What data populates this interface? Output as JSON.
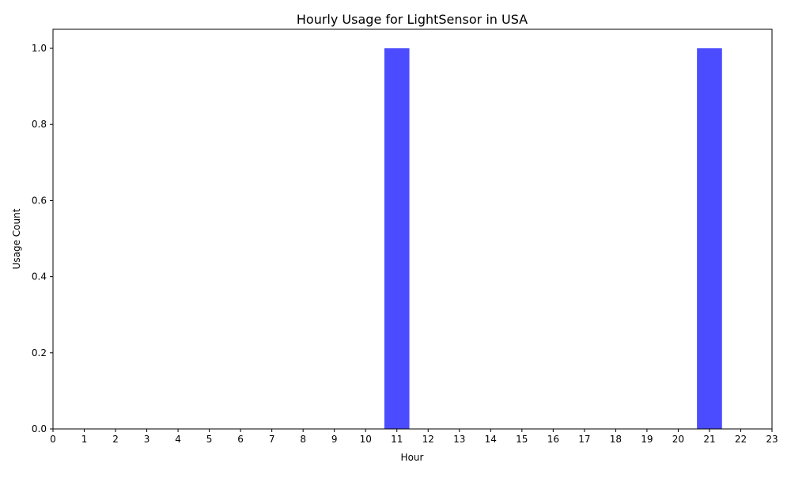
{
  "chart_data": {
    "type": "bar",
    "title": "Hourly Usage for LightSensor in USA",
    "xlabel": "Hour",
    "ylabel": "Usage Count",
    "categories": [
      "0",
      "1",
      "2",
      "3",
      "4",
      "5",
      "6",
      "7",
      "8",
      "9",
      "10",
      "11",
      "12",
      "13",
      "14",
      "15",
      "16",
      "17",
      "18",
      "19",
      "20",
      "21",
      "22",
      "23"
    ],
    "values": [
      0,
      0,
      0,
      0,
      0,
      0,
      0,
      0,
      0,
      0,
      0,
      1,
      0,
      0,
      0,
      0,
      0,
      0,
      0,
      0,
      0,
      1,
      0,
      0
    ],
    "xlim": [
      0,
      23
    ],
    "ylim": [
      0,
      1.05
    ],
    "yticks": [
      "0.0",
      "0.2",
      "0.4",
      "0.6",
      "0.8",
      "1.0"
    ],
    "ytick_values": [
      0,
      0.2,
      0.4,
      0.6,
      0.8,
      1.0
    ],
    "bar_color": "#4b4bff",
    "grid": false,
    "legend": "none"
  }
}
